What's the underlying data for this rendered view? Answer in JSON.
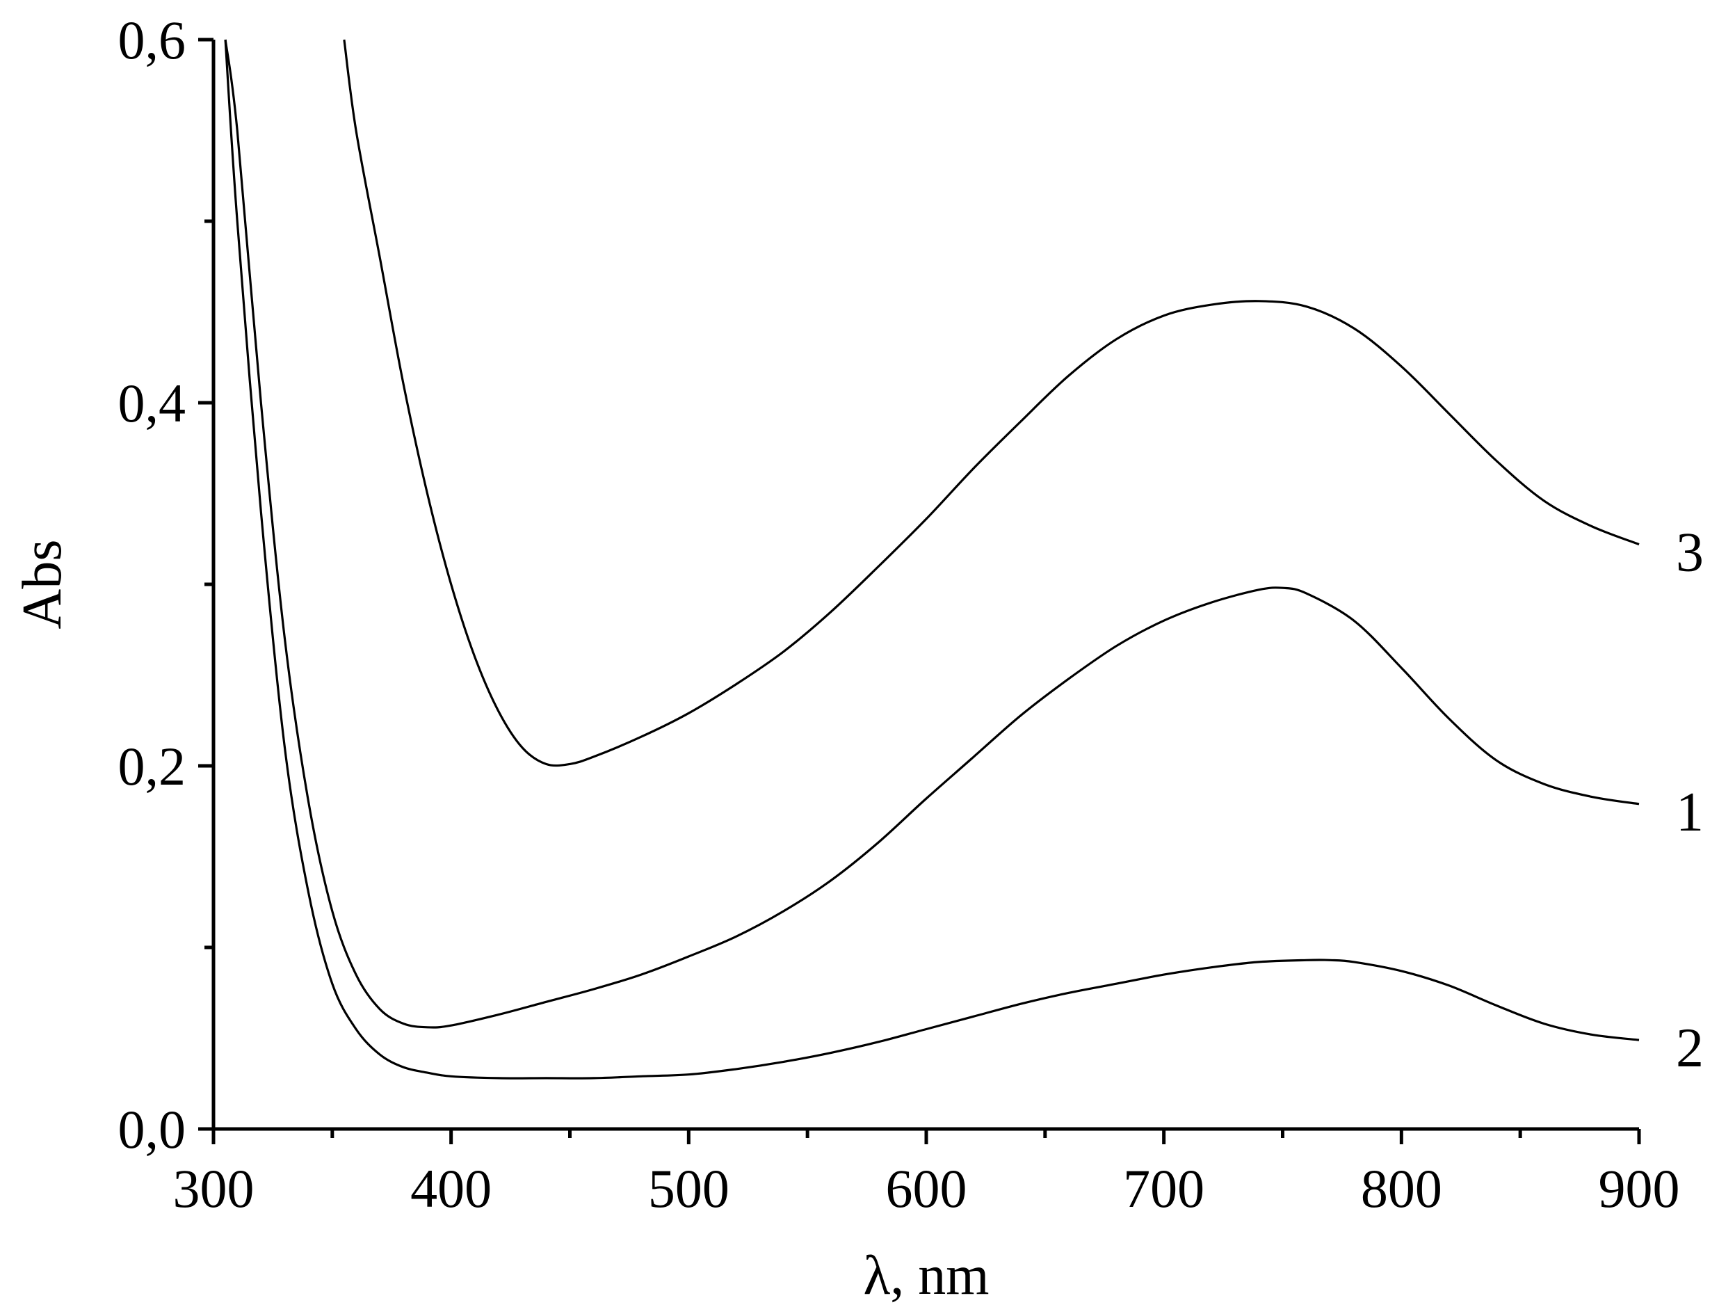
{
  "chart_data": {
    "type": "line",
    "title": "",
    "xlabel": "λ, nm",
    "ylabel": "Abs",
    "xlim": [
      300,
      900
    ],
    "ylim": [
      0.0,
      0.6
    ],
    "xticks": [
      300,
      400,
      500,
      600,
      700,
      800,
      900
    ],
    "xtick_labels": [
      "300",
      "400",
      "500",
      "600",
      "700",
      "800",
      "900"
    ],
    "yticks": [
      0.0,
      0.2,
      0.4,
      0.6
    ],
    "ytick_labels": [
      "0,0",
      "0,2",
      "0,4",
      "0,6"
    ],
    "minor_xticks": [
      350,
      450,
      550,
      650,
      750,
      850
    ],
    "minor_yticks": [
      0.1,
      0.3,
      0.5
    ],
    "grid": false,
    "legend": "none",
    "line_color": "#000000",
    "series": [
      {
        "label": "1",
        "x": [
          305,
          310,
          320,
          330,
          340,
          350,
          360,
          370,
          380,
          390,
          400,
          420,
          440,
          460,
          480,
          500,
          520,
          540,
          560,
          580,
          600,
          620,
          640,
          660,
          680,
          700,
          720,
          740,
          750,
          760,
          780,
          800,
          820,
          840,
          860,
          880,
          900
        ],
        "y": [
          0.6,
          0.55,
          0.4,
          0.27,
          0.18,
          0.12,
          0.085,
          0.066,
          0.058,
          0.056,
          0.057,
          0.063,
          0.07,
          0.077,
          0.085,
          0.095,
          0.106,
          0.12,
          0.137,
          0.158,
          0.182,
          0.205,
          0.228,
          0.248,
          0.266,
          0.28,
          0.29,
          0.297,
          0.298,
          0.295,
          0.28,
          0.254,
          0.226,
          0.203,
          0.19,
          0.183,
          0.179
        ]
      },
      {
        "label": "2",
        "x": [
          305,
          310,
          320,
          330,
          340,
          350,
          360,
          370,
          380,
          390,
          400,
          420,
          440,
          460,
          480,
          500,
          520,
          540,
          560,
          580,
          600,
          620,
          640,
          660,
          680,
          700,
          720,
          740,
          760,
          770,
          780,
          800,
          820,
          840,
          860,
          880,
          900
        ],
        "y": [
          0.6,
          0.5,
          0.34,
          0.21,
          0.13,
          0.08,
          0.055,
          0.041,
          0.034,
          0.031,
          0.029,
          0.028,
          0.028,
          0.028,
          0.029,
          0.03,
          0.033,
          0.037,
          0.042,
          0.048,
          0.055,
          0.062,
          0.069,
          0.075,
          0.08,
          0.085,
          0.089,
          0.092,
          0.093,
          0.093,
          0.092,
          0.087,
          0.079,
          0.068,
          0.058,
          0.052,
          0.049
        ]
      },
      {
        "label": "3",
        "x": [
          355,
          360,
          370,
          380,
          390,
          400,
          410,
          420,
          430,
          440,
          450,
          460,
          480,
          500,
          520,
          540,
          560,
          580,
          600,
          620,
          640,
          660,
          680,
          700,
          720,
          740,
          760,
          780,
          800,
          820,
          840,
          860,
          880,
          900
        ],
        "y": [
          0.6,
          0.55,
          0.48,
          0.41,
          0.35,
          0.3,
          0.26,
          0.23,
          0.21,
          0.201,
          0.201,
          0.205,
          0.216,
          0.229,
          0.245,
          0.263,
          0.285,
          0.31,
          0.336,
          0.364,
          0.39,
          0.415,
          0.435,
          0.448,
          0.454,
          0.456,
          0.453,
          0.441,
          0.42,
          0.394,
          0.368,
          0.346,
          0.332,
          0.322
        ]
      }
    ]
  }
}
